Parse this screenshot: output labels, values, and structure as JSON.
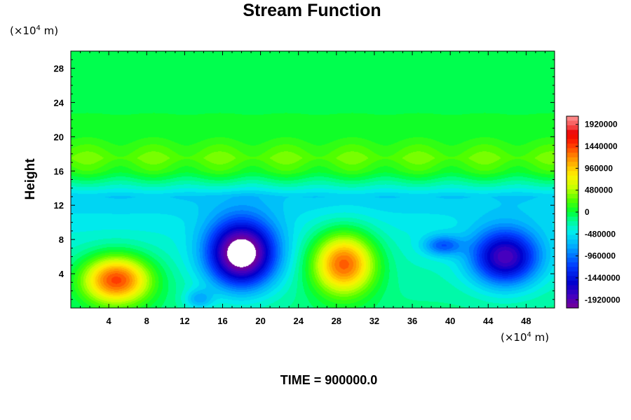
{
  "chart_data": {
    "type": "heatmap",
    "title": "Stream Function",
    "ylabel": "Height",
    "xlabel": "",
    "x_unit": {
      "prefix": "(×10",
      "exp": "4",
      "suffix": " m)"
    },
    "y_unit": {
      "prefix": "(×10",
      "exp": "4",
      "suffix": " m)"
    },
    "xlim": [
      0,
      51
    ],
    "ylim": [
      0,
      30
    ],
    "x_ticks": [
      4,
      8,
      12,
      16,
      20,
      24,
      28,
      32,
      36,
      40,
      44,
      48
    ],
    "y_ticks": [
      4,
      8,
      12,
      16,
      20,
      24,
      28
    ],
    "colorbar": {
      "range": [
        -2100000,
        2100000
      ],
      "ticks": [
        1920000,
        1440000,
        960000,
        480000,
        0,
        -480000,
        -960000,
        -1440000,
        -1920000
      ],
      "tick_labels": [
        "1920000",
        "1440000",
        "960000",
        "480000",
        "0",
        "-480000",
        "-960000",
        "-1440000",
        "-1920000"
      ]
    },
    "features": [
      {
        "kind": "high",
        "x": 4.8,
        "y": 3.3,
        "peak": 1700000,
        "rx": 3.6,
        "ry": 2.8
      },
      {
        "kind": "high",
        "x": 28.8,
        "y": 5.2,
        "peak": 1650000,
        "rx": 3.3,
        "ry": 3.6
      },
      {
        "kind": "low",
        "x": 18.0,
        "y": 6.3,
        "peak": -2100000,
        "rx": 3.6,
        "ry": 3.9
      },
      {
        "kind": "low",
        "x": 45.8,
        "y": 5.9,
        "peak": -1550000,
        "rx": 3.6,
        "ry": 3.3
      },
      {
        "kind": "low",
        "x": 39.2,
        "y": 7.3,
        "peak": -700000,
        "rx": 2.0,
        "ry": 1.2
      },
      {
        "kind": "low",
        "x": 13.5,
        "y": 1.0,
        "peak": -500000,
        "rx": 1.5,
        "ry": 1.2
      }
    ],
    "background_profile": [
      {
        "y": 0,
        "value": -180000
      },
      {
        "y": 8,
        "value": -380000
      },
      {
        "y": 10,
        "value": -450000
      },
      {
        "y": 13,
        "value": -600000
      },
      {
        "y": 16,
        "value": 120000
      },
      {
        "y": 17.5,
        "value": 300000
      },
      {
        "y": 20,
        "value": 60000
      },
      {
        "y": 24,
        "value": -30000
      },
      {
        "y": 30,
        "value": 0
      }
    ]
  },
  "footer": {
    "time_label": "TIME = 900000.0"
  }
}
